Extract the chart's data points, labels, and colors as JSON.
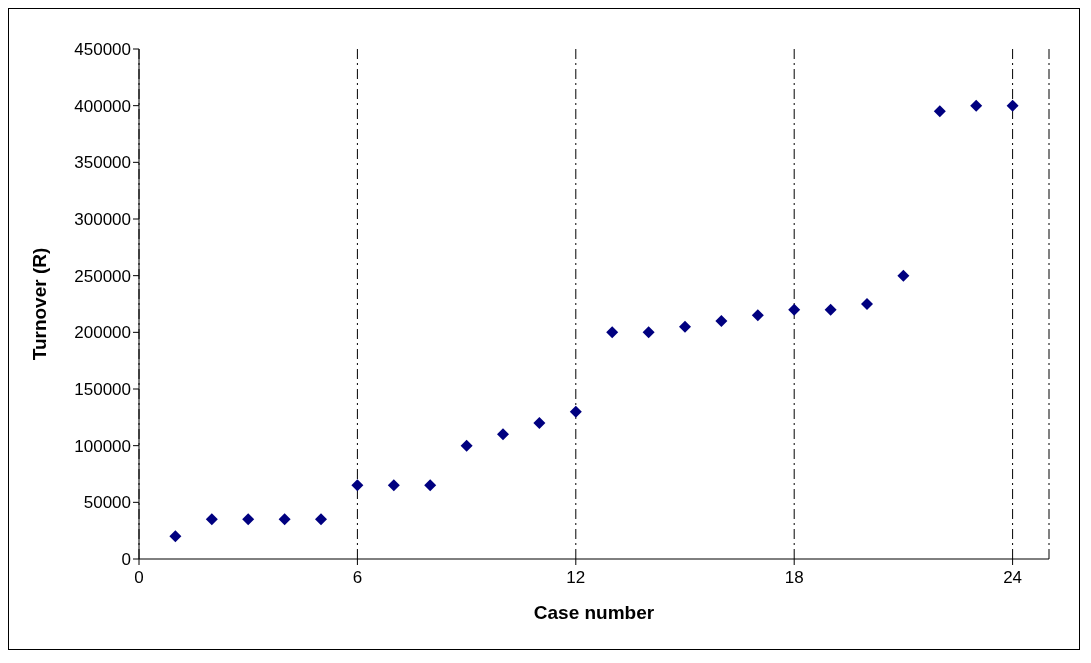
{
  "chart_data": {
    "type": "scatter",
    "xlabel": "Case number",
    "ylabel": "Turnover (R)",
    "x": [
      1,
      2,
      3,
      4,
      5,
      6,
      7,
      8,
      9,
      10,
      11,
      12,
      13,
      14,
      15,
      16,
      17,
      18,
      19,
      20,
      21,
      22,
      23,
      24
    ],
    "series": [
      {
        "color": "#000080",
        "values": [
          20000,
          35000,
          35000,
          35000,
          35000,
          65000,
          65000,
          65000,
          100000,
          110000,
          120000,
          130000,
          200000,
          200000,
          205000,
          210000,
          215000,
          220000,
          220000,
          225000,
          250000,
          395000,
          400000,
          400000
        ]
      }
    ],
    "xlim": [
      0,
      25
    ],
    "xticks": [
      0,
      6,
      12,
      18,
      24
    ],
    "ylim": [
      0,
      450000
    ],
    "yticks": [
      0,
      50000,
      100000,
      150000,
      200000,
      250000,
      300000,
      350000,
      400000,
      450000
    ],
    "grid": "x",
    "marker": "diamond",
    "legend": false
  }
}
